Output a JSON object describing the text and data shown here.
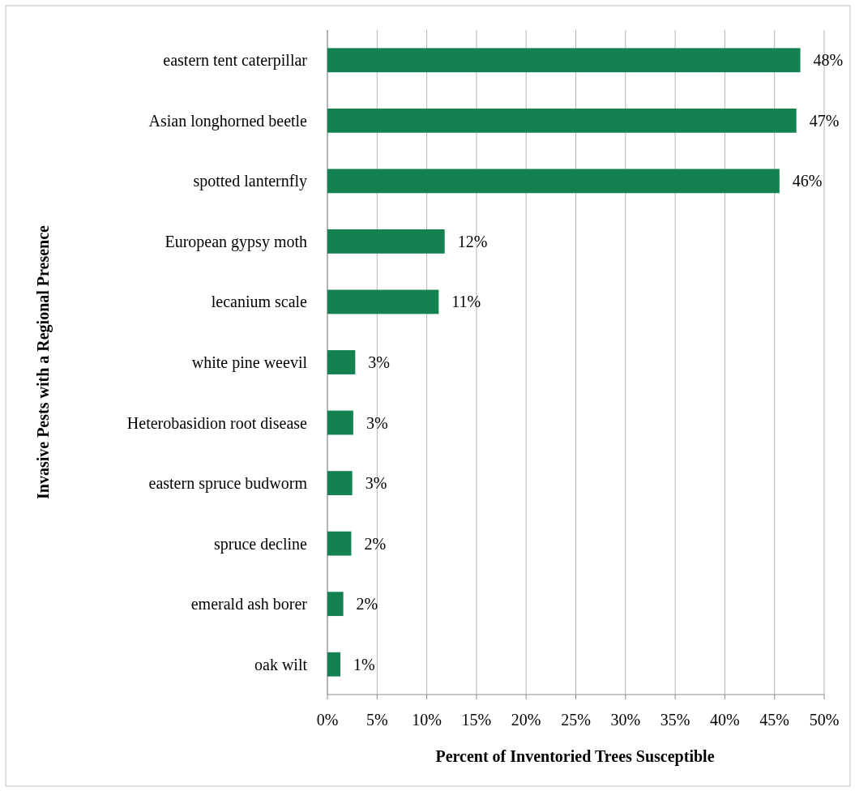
{
  "chart_data": {
    "type": "bar",
    "orientation": "horizontal",
    "xlabel": "Percent of Inventoried Trees Susceptible",
    "ylabel": "Invasive Pests with a Regional Presence",
    "categories": [
      "eastern tent caterpillar",
      "Asian longhorned beetle",
      "spotted lanternfly",
      "European gypsy moth",
      "lecanium scale",
      "white pine weevil",
      "Heterobasidion root disease",
      "eastern spruce budworm",
      "spruce decline",
      "emerald ash borer",
      "oak wilt"
    ],
    "values": [
      47.6,
      47.2,
      45.5,
      11.8,
      11.2,
      2.8,
      2.6,
      2.5,
      2.4,
      1.6,
      1.3
    ],
    "value_labels": [
      "48%",
      "47%",
      "46%",
      "12%",
      "11%",
      "3%",
      "3%",
      "3%",
      "2%",
      "2%",
      "1%"
    ],
    "color": "#138150",
    "xlim": [
      0,
      50
    ],
    "xticks": [
      {
        "value": 0,
        "label": "0%"
      },
      {
        "value": 5,
        "label": "5%"
      },
      {
        "value": 10,
        "label": "10%"
      },
      {
        "value": 15,
        "label": "15%"
      },
      {
        "value": 20,
        "label": "20%"
      },
      {
        "value": 25,
        "label": "25%"
      },
      {
        "value": 30,
        "label": "30%"
      },
      {
        "value": 35,
        "label": "35%"
      },
      {
        "value": 40,
        "label": "40%"
      },
      {
        "value": 45,
        "label": "45%"
      },
      {
        "value": 50,
        "label": "50%"
      }
    ],
    "grid": "x"
  }
}
